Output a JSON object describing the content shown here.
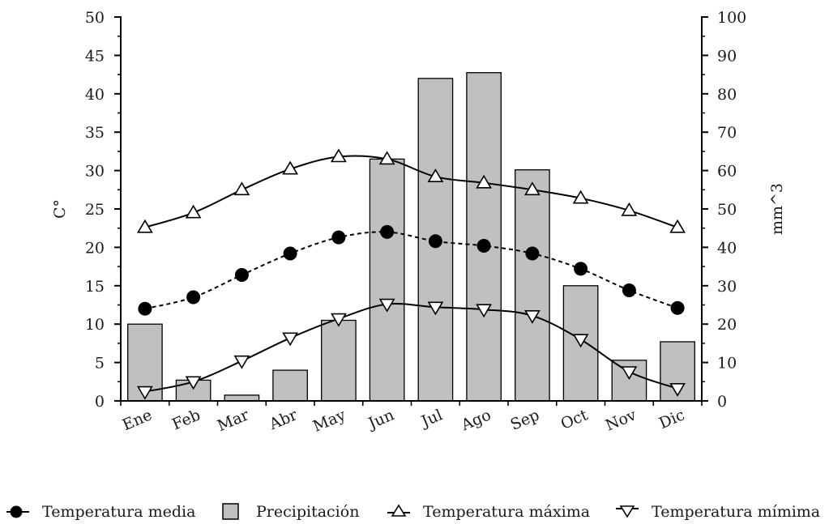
{
  "chart_data": {
    "type": "bar",
    "categories": [
      "Ene",
      "Feb",
      "Mar",
      "Abr",
      "May",
      "Jun",
      "Jul",
      "Ago",
      "Sep",
      "Oct",
      "Nov",
      "Dic"
    ],
    "y_left": {
      "label": "C°",
      "min": 0,
      "max": 50,
      "ticks": [
        0,
        5,
        10,
        15,
        20,
        25,
        30,
        35,
        40,
        45,
        50
      ]
    },
    "y_right": {
      "label": "mm^3",
      "min": 0,
      "max": 100,
      "ticks": [
        0,
        10,
        20,
        30,
        40,
        50,
        60,
        70,
        80,
        90,
        100
      ]
    },
    "series": [
      {
        "name": "Temperatura media",
        "kind": "line",
        "axis": "left",
        "marker": "filled-circle",
        "line_style": "dashed",
        "values": [
          12.0,
          13.5,
          16.4,
          19.2,
          21.3,
          22.0,
          20.8,
          20.2,
          19.2,
          17.2,
          14.4,
          12.1
        ]
      },
      {
        "name": "Precipitación",
        "kind": "bar",
        "axis": "right",
        "color": "#c0c0c0",
        "values": [
          20.0,
          5.4,
          1.5,
          8.0,
          21.0,
          63.0,
          84.0,
          85.5,
          60.2,
          30.0,
          10.6,
          15.4
        ]
      },
      {
        "name": "Temperatura máxima",
        "kind": "line",
        "axis": "left",
        "marker": "triangle-up",
        "line_style": "solid",
        "values": [
          22.6,
          24.5,
          27.5,
          30.2,
          31.8,
          31.5,
          29.2,
          28.4,
          27.5,
          26.4,
          24.8,
          22.6
        ]
      },
      {
        "name": "Temperatura mímima",
        "kind": "line",
        "axis": "left",
        "marker": "triangle-down",
        "line_style": "solid",
        "values": [
          1.2,
          2.5,
          5.2,
          8.2,
          10.7,
          12.6,
          12.2,
          11.9,
          11.1,
          8.0,
          3.8,
          1.6
        ]
      }
    ],
    "legend_position": "bottom",
    "grid": false
  },
  "colors": {
    "bar_fill": "#c0c0c0",
    "ink": "#000000"
  }
}
